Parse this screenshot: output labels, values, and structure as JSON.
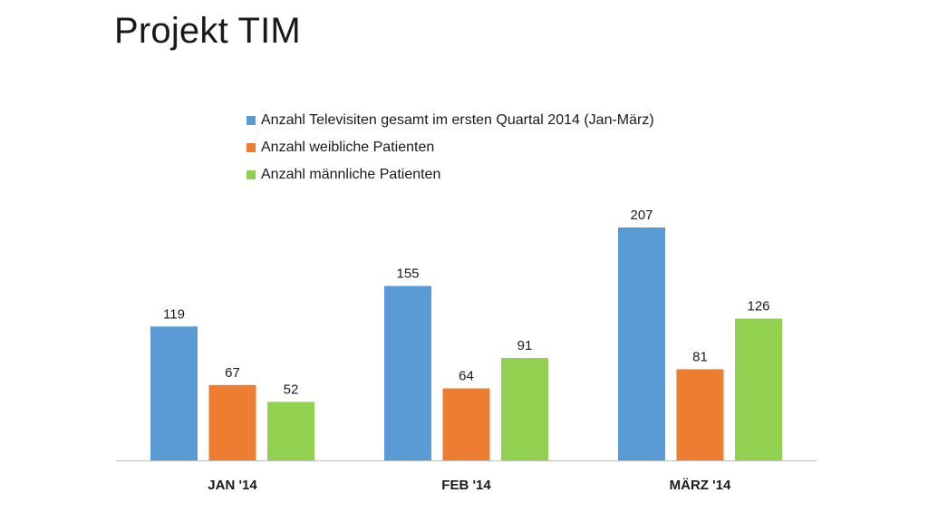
{
  "slide": {
    "title": "Projekt TIM"
  },
  "chart_data": {
    "type": "bar",
    "categories": [
      "JAN '14",
      "FEB '14",
      "MÄRZ '14"
    ],
    "series": [
      {
        "name": "Anzahl Televisiten gesamt im ersten Quartal 2014 (Jan-März)",
        "values": [
          119,
          155,
          207
        ],
        "color": "#5b9bd5"
      },
      {
        "name": "Anzahl weibliche Patienten",
        "values": [
          67,
          64,
          81
        ],
        "color": "#ed7d31"
      },
      {
        "name": "Anzahl männliche Patienten",
        "values": [
          52,
          91,
          126
        ],
        "color": "#92d050"
      }
    ],
    "ylim": [
      0,
      207
    ],
    "legend_position": "top",
    "grid": false,
    "data_labels": true
  }
}
